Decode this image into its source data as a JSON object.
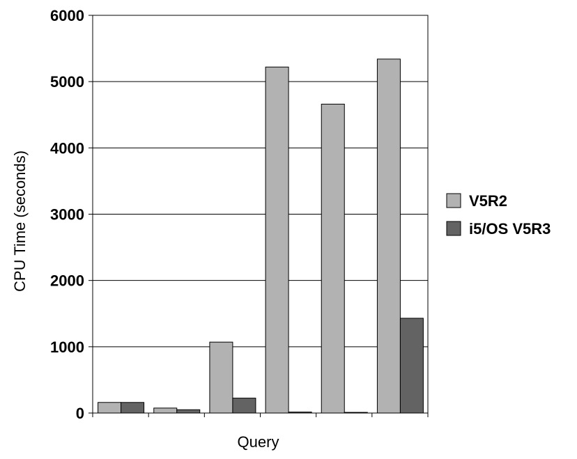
{
  "chart_data": {
    "type": "bar",
    "title": "",
    "xlabel": "Query",
    "ylabel": "CPU Time (seconds)",
    "ylim": [
      0,
      6000
    ],
    "yticks": [
      0,
      1000,
      2000,
      3000,
      4000,
      5000,
      6000
    ],
    "categories": [
      "",
      "",
      "",
      "",
      "",
      ""
    ],
    "series": [
      {
        "name": "V5R2",
        "values": [
          160,
          75,
          1070,
          5220,
          4660,
          5340
        ]
      },
      {
        "name": "i5/OS V5R3",
        "values": [
          160,
          50,
          225,
          15,
          10,
          1430
        ]
      }
    ],
    "grid": true,
    "legend": "right",
    "colors": {
      "series": [
        "#b2b2b2",
        "#636363"
      ],
      "grid": "#000000",
      "axis": "#000000",
      "background": "#ffffff"
    }
  }
}
